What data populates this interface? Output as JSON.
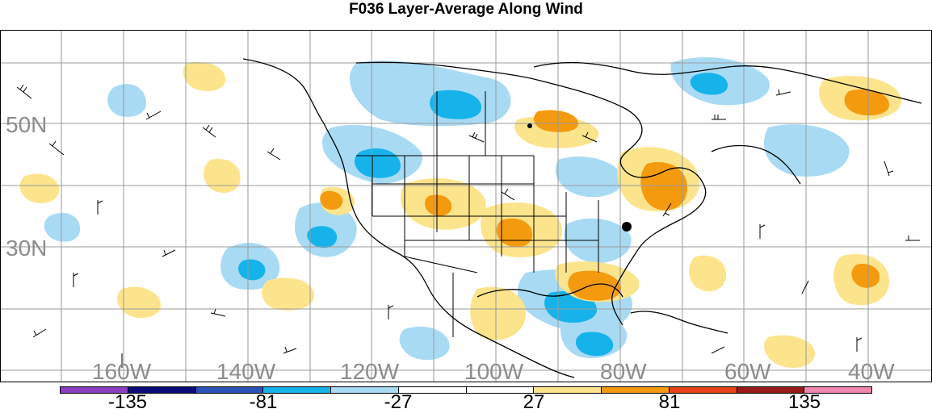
{
  "title": "F036 Layer-Average Along Wind",
  "map": {
    "lat_labels": [
      "50N",
      "30N"
    ],
    "lon_labels": [
      "160W",
      "140W",
      "120W",
      "100W",
      "80W",
      "60W",
      "40W"
    ]
  },
  "colorbar": {
    "colors": [
      "#8a3fc0",
      "#0b0b7a",
      "#2b52b8",
      "#16b3ea",
      "#a8daf4",
      "#ffffff",
      "#ffffff",
      "#fbe48c",
      "#f39a0f",
      "#e8431a",
      "#9a1a1a",
      "#ef86ae"
    ],
    "tick_labels": [
      "-135",
      "-81",
      "-27",
      "27",
      "81",
      "135"
    ]
  }
}
